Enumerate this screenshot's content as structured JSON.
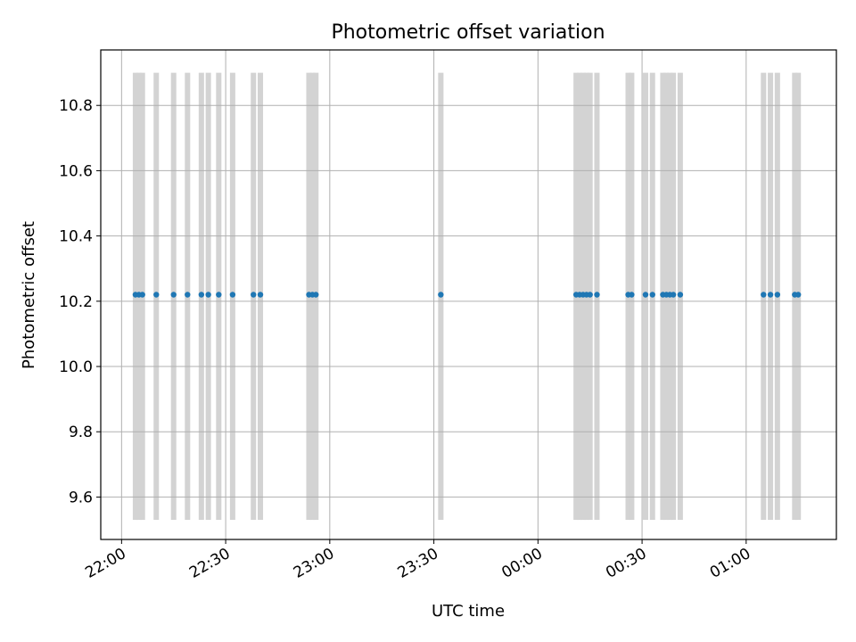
{
  "chart_data": {
    "type": "scatter",
    "title": "Photometric offset variation",
    "xlabel": "UTC time",
    "ylabel": "Photometric offset",
    "x_tick_labels": [
      "22:00",
      "22:30",
      "23:00",
      "23:30",
      "00:00",
      "00:30",
      "01:00"
    ],
    "y_tick_labels": [
      "9.6",
      "9.8",
      "10.0",
      "10.2",
      "10.4",
      "10.6",
      "10.8"
    ],
    "y_ticks": [
      9.6,
      9.8,
      10.0,
      10.2,
      10.4,
      10.6,
      10.8
    ],
    "xlim": [
      "21:54",
      "01:26"
    ],
    "ylim": [
      9.47,
      10.97
    ],
    "grid": true,
    "legend": "none",
    "point_color": "#1f77b4",
    "band_color": "#d3d3d3",
    "shaded_y_range": [
      9.53,
      10.9
    ],
    "points": {
      "x": [
        "22:04",
        "22:05",
        "22:06",
        "22:10",
        "22:15",
        "22:19",
        "22:23",
        "22:25",
        "22:28",
        "22:32",
        "22:38",
        "22:40",
        "22:54",
        "22:55",
        "22:56",
        "23:32",
        "00:11",
        "00:12",
        "00:13",
        "00:14",
        "00:15",
        "00:17",
        "00:26",
        "00:27",
        "00:31",
        "00:33",
        "00:36",
        "00:37",
        "00:38",
        "00:39",
        "00:41",
        "01:05",
        "01:07",
        "01:09",
        "01:14",
        "01:15"
      ],
      "y": [
        10.22,
        10.22,
        10.22,
        10.22,
        10.22,
        10.22,
        10.22,
        10.22,
        10.22,
        10.22,
        10.22,
        10.22,
        10.22,
        10.22,
        10.22,
        10.22,
        10.22,
        10.22,
        10.22,
        10.22,
        10.22,
        10.22,
        10.22,
        10.22,
        10.22,
        10.22,
        10.22,
        10.22,
        10.22,
        10.22,
        10.22,
        10.22,
        10.22,
        10.22,
        10.22,
        10.22
      ]
    }
  }
}
